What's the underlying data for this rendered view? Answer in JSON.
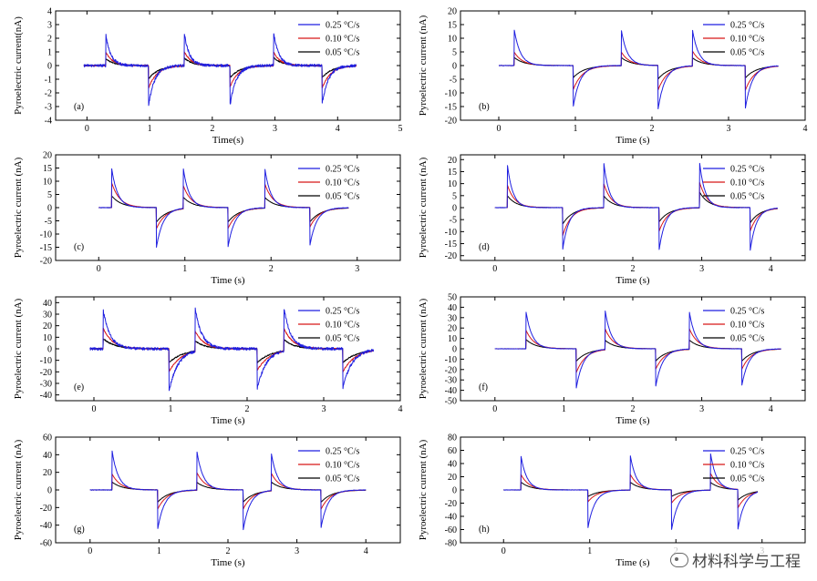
{
  "figure_kind": "Pyroelectric current vs time, 8 panels",
  "colors": {
    "s025": "#1f1fe0",
    "s010": "#d81818",
    "s005": "#000000"
  },
  "legend": [
    "0.25 °C/s",
    "0.10 °C/s",
    "0.05 °C/s"
  ],
  "watermark": {
    "text": "材料科学与工程",
    "icon": "wechat-logo-icon"
  },
  "chart_data": [
    {
      "panel": "(a)",
      "type": "line",
      "xlabel": "Time(s)",
      "ylabel": "Pyroelectric current(nA)",
      "xlim": [
        -0.5,
        5
      ],
      "ylim": [
        -4,
        4
      ],
      "xticks": [
        0,
        1,
        2,
        3,
        4,
        5
      ],
      "yticks": [
        -4,
        -3,
        -2,
        -1,
        0,
        1,
        2,
        3,
        4
      ],
      "x_start": -0.05,
      "x_end": 4.3,
      "noise": 0.1,
      "rise": 0.08,
      "fall": 0.1,
      "events": [
        [
          0.3,
          1
        ],
        [
          0.98,
          -1
        ],
        [
          1.55,
          1
        ],
        [
          2.28,
          -1
        ],
        [
          2.98,
          1
        ],
        [
          3.75,
          -1
        ]
      ],
      "series": [
        {
          "name": "0.25 °C/s",
          "peaks": [
            2.3,
            -3.0,
            2.5,
            -3.0,
            2.4,
            -2.9
          ]
        },
        {
          "name": "0.10 °C/s",
          "peaks": [
            1.0,
            -1.7,
            1.1,
            -1.6,
            1.0,
            -1.7
          ]
        },
        {
          "name": "0.05 °C/s",
          "peaks": [
            0.5,
            -1.0,
            0.6,
            -0.9,
            0.6,
            -0.9
          ]
        }
      ]
    },
    {
      "panel": "(b)",
      "type": "line",
      "xlabel": "Time (s)",
      "ylabel": "Pyroelectric current (nA)",
      "xlim": [
        -0.5,
        4
      ],
      "ylim": [
        -20,
        20
      ],
      "xticks": [
        0,
        1,
        2,
        3,
        4
      ],
      "yticks": [
        -20,
        -15,
        -10,
        -5,
        0,
        5,
        10,
        15,
        20
      ],
      "x_start": 0,
      "x_end": 3.65,
      "noise": 0.1,
      "rise": 0.08,
      "fall": 0.09,
      "events": [
        [
          0.2,
          1
        ],
        [
          0.97,
          -1
        ],
        [
          1.6,
          1
        ],
        [
          2.08,
          -1
        ],
        [
          2.53,
          1
        ],
        [
          3.22,
          -1
        ]
      ],
      "series": [
        {
          "name": "0.25 °C/s",
          "peaks": [
            13.5,
            -15.5,
            13.0,
            -16.0,
            13.0,
            -15.5
          ]
        },
        {
          "name": "0.10 °C/s",
          "peaks": [
            5.0,
            -9.0,
            5.0,
            -9.0,
            5.5,
            -9.0
          ]
        },
        {
          "name": "0.05 °C/s",
          "peaks": [
            3.0,
            -4.5,
            3.0,
            -5.0,
            3.0,
            -4.5
          ]
        }
      ]
    },
    {
      "panel": "(c)",
      "type": "line",
      "xlabel": "Time (s)",
      "ylabel": "Pyroelectric current (nA)",
      "xlim": [
        -0.5,
        3.5
      ],
      "ylim": [
        -20,
        20
      ],
      "xticks": [
        0,
        1,
        2,
        3
      ],
      "yticks": [
        -20,
        -15,
        -10,
        -5,
        0,
        5,
        10,
        15,
        20
      ],
      "x_start": 0,
      "x_end": 2.9,
      "noise": 0.1,
      "rise": 0.07,
      "fall": 0.08,
      "events": [
        [
          0.15,
          1
        ],
        [
          0.67,
          -1
        ],
        [
          0.98,
          1
        ],
        [
          1.5,
          -1
        ],
        [
          1.93,
          1
        ],
        [
          2.45,
          -1
        ]
      ],
      "series": [
        {
          "name": "0.25 °C/s",
          "peaks": [
            15.0,
            -15.0,
            15.5,
            -15.0,
            14.5,
            -14.5
          ]
        },
        {
          "name": "0.10 °C/s",
          "peaks": [
            9.5,
            -8.0,
            9.0,
            -8.0,
            9.0,
            -7.5
          ]
        },
        {
          "name": "0.05 °C/s",
          "peaks": [
            4.5,
            -5.5,
            4.5,
            -5.5,
            4.0,
            -5.5
          ]
        }
      ]
    },
    {
      "panel": "(d)",
      "type": "line",
      "xlabel": "Time (s)",
      "ylabel": "Pyroelectric current (nA)",
      "xlim": [
        -0.5,
        4.5
      ],
      "ylim": [
        -22,
        22
      ],
      "xticks": [
        0,
        1,
        2,
        3,
        4
      ],
      "yticks": [
        -20,
        -15,
        -10,
        -5,
        0,
        5,
        10,
        15,
        20
      ],
      "x_start": 0,
      "x_end": 4.1,
      "noise": 0.1,
      "rise": 0.08,
      "fall": 0.09,
      "events": [
        [
          0.18,
          1
        ],
        [
          0.98,
          -1
        ],
        [
          1.58,
          1
        ],
        [
          2.38,
          -1
        ],
        [
          2.97,
          1
        ],
        [
          3.7,
          -1
        ]
      ],
      "series": [
        {
          "name": "0.25 °C/s",
          "peaks": [
            18.0,
            -18.0,
            18.5,
            -18.0,
            18.5,
            -18.5
          ]
        },
        {
          "name": "0.10 °C/s",
          "peaks": [
            9.5,
            -12.0,
            10.0,
            -10.0,
            10.5,
            -10.0
          ]
        },
        {
          "name": "0.05 °C/s",
          "peaks": [
            5.0,
            -7.0,
            5.0,
            -6.0,
            6.5,
            -6.5
          ]
        }
      ]
    },
    {
      "panel": "(e)",
      "type": "line",
      "xlabel": "Time (s)",
      "ylabel": "Pyroelectric current (nA)",
      "xlim": [
        -0.5,
        4
      ],
      "ylim": [
        -45,
        45
      ],
      "xticks": [
        0,
        1,
        2,
        3,
        4
      ],
      "yticks": [
        -40,
        -30,
        -20,
        -10,
        0,
        10,
        20,
        30,
        40
      ],
      "x_start": -0.05,
      "x_end": 3.65,
      "noise": 1.2,
      "rise": 0.09,
      "fall": 0.12,
      "events": [
        [
          0.12,
          1
        ],
        [
          0.98,
          -1
        ],
        [
          1.32,
          1
        ],
        [
          2.13,
          -1
        ],
        [
          2.48,
          1
        ],
        [
          3.25,
          -1
        ]
      ],
      "series": [
        {
          "name": "0.25 °C/s",
          "peaks": [
            34,
            -37,
            38,
            -35,
            38,
            -34
          ]
        },
        {
          "name": "0.10 °C/s",
          "peaks": [
            18,
            -20,
            18,
            -19,
            20,
            -20
          ]
        },
        {
          "name": "0.05 °C/s",
          "peaks": [
            9,
            -12,
            9,
            -12,
            10,
            -12
          ]
        }
      ]
    },
    {
      "panel": "(f)",
      "type": "line",
      "xlabel": "Time (s)",
      "ylabel": "Pyroelectric current (nA)",
      "xlim": [
        -0.5,
        4.5
      ],
      "ylim": [
        -50,
        50
      ],
      "xticks": [
        0,
        1,
        2,
        3,
        4
      ],
      "yticks": [
        -50,
        -40,
        -30,
        -20,
        -10,
        0,
        10,
        20,
        30,
        40,
        50
      ],
      "x_start": 0,
      "x_end": 4.15,
      "noise": 0.2,
      "rise": 0.09,
      "fall": 0.1,
      "events": [
        [
          0.45,
          1
        ],
        [
          1.18,
          -1
        ],
        [
          1.6,
          1
        ],
        [
          2.33,
          -1
        ],
        [
          2.82,
          1
        ],
        [
          3.58,
          -1
        ]
      ],
      "series": [
        {
          "name": "0.25 °C/s",
          "peaks": [
            36,
            -38,
            37,
            -37,
            36,
            -36
          ]
        },
        {
          "name": "0.10 °C/s",
          "peaks": [
            18,
            -23,
            20,
            -20,
            20,
            -20
          ]
        },
        {
          "name": "0.05 °C/s",
          "peaks": [
            9,
            -12,
            9,
            -12,
            9,
            -12
          ]
        }
      ]
    },
    {
      "panel": "(g)",
      "type": "line",
      "xlabel": "Time (s)",
      "ylabel": "Pyroelectric current (nA)",
      "xlim": [
        -0.5,
        4.5
      ],
      "ylim": [
        -60,
        60
      ],
      "xticks": [
        0,
        1,
        2,
        3,
        4
      ],
      "yticks": [
        -60,
        -40,
        -20,
        0,
        20,
        40,
        60
      ],
      "x_start": 0,
      "x_end": 4.0,
      "noise": 0.3,
      "rise": 0.09,
      "fall": 0.1,
      "events": [
        [
          0.32,
          1
        ],
        [
          0.98,
          -1
        ],
        [
          1.55,
          1
        ],
        [
          2.22,
          -1
        ],
        [
          2.63,
          1
        ],
        [
          3.35,
          -1
        ]
      ],
      "series": [
        {
          "name": "0.25 °C/s",
          "peaks": [
            44,
            -45,
            44,
            -46,
            42,
            -43
          ]
        },
        {
          "name": "0.10 °C/s",
          "peaks": [
            18,
            -22,
            20,
            -22,
            20,
            -22
          ]
        },
        {
          "name": "0.05 °C/s",
          "peaks": [
            9,
            -14,
            9,
            -14,
            10,
            -14
          ]
        }
      ]
    },
    {
      "panel": "(h)",
      "type": "line",
      "xlabel": "Time (s)",
      "ylabel": "Pyroelectric current (nA)",
      "xlim": [
        -0.5,
        3.5
      ],
      "ylim": [
        -80,
        80
      ],
      "xticks": [
        0,
        1,
        2,
        3
      ],
      "yticks": [
        -80,
        -60,
        -40,
        -20,
        0,
        20,
        40,
        60,
        80
      ],
      "x_start": 0,
      "x_end": 2.95,
      "noise": 0.3,
      "rise": 0.07,
      "fall": 0.08,
      "events": [
        [
          0.2,
          1
        ],
        [
          0.98,
          -1
        ],
        [
          1.47,
          1
        ],
        [
          1.95,
          -1
        ],
        [
          2.4,
          1
        ],
        [
          2.72,
          -1
        ]
      ],
      "series": [
        {
          "name": "0.25 °C/s",
          "peaks": [
            53,
            -57,
            53,
            -60,
            57,
            -60
          ]
        },
        {
          "name": "0.10 °C/s",
          "peaks": [
            24,
            -18,
            24,
            -20,
            26,
            -28
          ]
        },
        {
          "name": "0.05 °C/s",
          "peaks": [
            12,
            -10,
            12,
            -10,
            12,
            -16
          ]
        }
      ]
    }
  ]
}
